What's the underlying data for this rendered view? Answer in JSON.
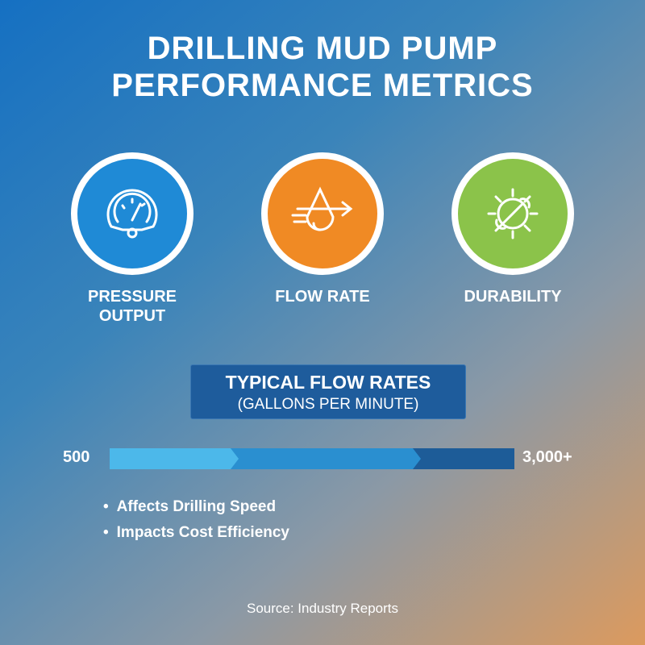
{
  "header": {
    "title_lines": [
      "DRILLING MUD PUMP",
      "PERFORMANCE METRICS"
    ]
  },
  "metrics": [
    {
      "label": "PRESSURE OUTPUT"
    },
    {
      "label": "FLOW RATE"
    },
    {
      "label": "DURABILITY"
    }
  ],
  "flow_rates": {
    "title": "TYPICAL FLOW RATES",
    "subtitle": "(GALLONS PER MINUTE)",
    "min_label": "500",
    "max_label": "3,000+"
  },
  "bullets": [
    "Affects Drilling Speed",
    "Impacts Cost Efficiency"
  ],
  "footer": {
    "source": "Source: Industry Reports"
  }
}
